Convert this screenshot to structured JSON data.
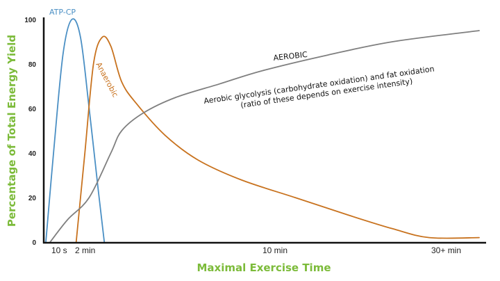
{
  "chart_data": {
    "type": "line",
    "xlabel": "Maximal Exercise Time",
    "ylabel": "Percentage of Total Energy Yield",
    "ylim": [
      0,
      100
    ],
    "yticks": [
      0,
      20,
      40,
      60,
      80,
      100
    ],
    "xticks": [
      "10 s",
      "2 min",
      "10 min",
      "30+ min"
    ],
    "grid": false,
    "colors": {
      "atp_cp": "#4a8fc4",
      "anaerobic": "#c8721e",
      "aerobic": "#7f7f7f",
      "axis_title": "#7cbb3a"
    },
    "series": [
      {
        "name": "ATP-CP",
        "values": [
          [
            0.0,
            0
          ],
          [
            0.4,
            45
          ],
          [
            0.8,
            85
          ],
          [
            1.2,
            100
          ],
          [
            1.6,
            92
          ],
          [
            2.0,
            60
          ],
          [
            2.4,
            25
          ],
          [
            2.7,
            0
          ]
        ]
      },
      {
        "name": "Anaerobic",
        "values": [
          [
            1.4,
            0
          ],
          [
            1.8,
            40
          ],
          [
            2.2,
            80
          ],
          [
            2.6,
            92
          ],
          [
            3.0,
            88
          ],
          [
            3.5,
            72
          ],
          [
            4.2,
            62
          ],
          [
            5.5,
            48
          ],
          [
            7.0,
            37
          ],
          [
            9.0,
            28
          ],
          [
            11.5,
            20
          ],
          [
            14.0,
            12
          ],
          [
            16.0,
            6
          ],
          [
            17.7,
            2
          ],
          [
            20.0,
            2
          ]
        ]
      },
      {
        "name": "AEROBIC",
        "values": [
          [
            0.2,
            0
          ],
          [
            1.0,
            10
          ],
          [
            2.0,
            20
          ],
          [
            3.0,
            40
          ],
          [
            3.5,
            50
          ],
          [
            4.5,
            58
          ],
          [
            6.0,
            65
          ],
          [
            8.0,
            71
          ],
          [
            10.0,
            77
          ],
          [
            13.0,
            84
          ],
          [
            16.0,
            90
          ],
          [
            20.0,
            95
          ]
        ]
      }
    ],
    "annotations": [
      "Aerobic glycolysis (carbohydrate oxidation) and fat oxidation",
      "(ratio of these depends on exercise intensity)"
    ]
  }
}
